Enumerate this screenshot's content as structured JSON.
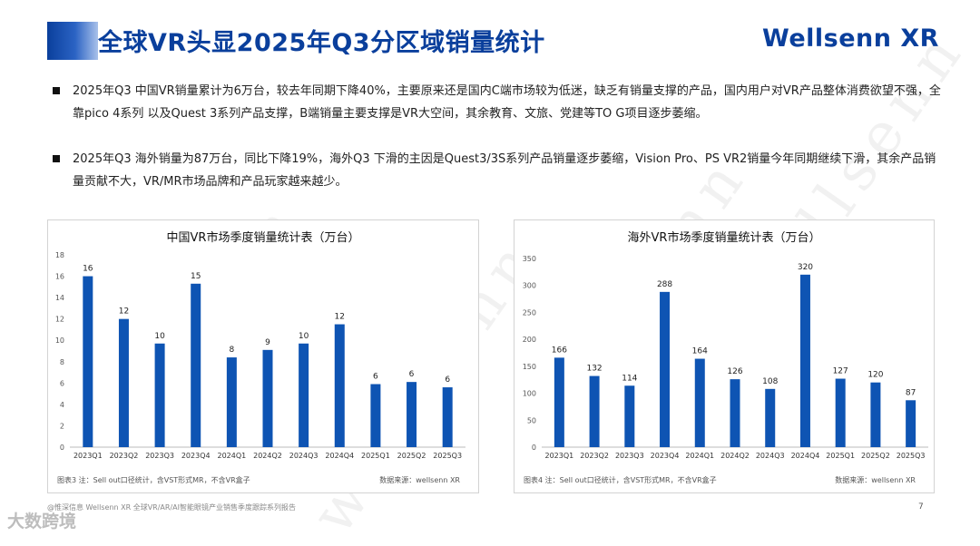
{
  "title": "全球VR头显2025年Q3分区域销量统计",
  "logo": "Wellsenn XR",
  "bullets": [
    "2025年Q3 中国VR销量累计为6万台，较去年同期下降40%，主要原来还是国内C端市场较为低迷，缺乏有销量支撑的产品，国内用户对VR产品整体消费欲望不强，全靠pico 4系列 以及Quest 3系列产品支撑，B端销量主要支撑是VR大空间，其余教育、文旅、党建等TO G项目逐步萎缩。",
    "2025年Q3 海外销量为87万台，同比下降19%，海外Q3 下滑的主因是Quest3/3S系列产品销量逐步萎缩，Vision Pro、PS VR2销量今年同期继续下滑，其余产品销量贡献不大，VR/MR市场品牌和产品玩家越来越少。"
  ],
  "charts": [
    {
      "note": "图表3  注：Sell out口径统计，含VST形式MR，不含VR盒子",
      "source": "数据来源：wellsenn XR"
    },
    {
      "note": "图表4  注：Sell out口径统计，含VST形式MR，不含VR盒子",
      "source": "数据来源：wellsenn XR"
    }
  ],
  "footer": "@惟深信息 Wellsenn XR 全球VR/AR/AI智能眼镜产业销售季度跟踪系列报告",
  "page_number": "7",
  "watermark": "wellsenn",
  "brand_watermark": "大数跨境",
  "colors": {
    "accent": "#0a3f9c",
    "bar": "#0e54b3"
  },
  "chart_data": [
    {
      "type": "bar",
      "title": "中国VR市场季度销量统计表（万台）",
      "categories": [
        "2023Q1",
        "2023Q2",
        "2023Q3",
        "2023Q4",
        "2024Q1",
        "2024Q2",
        "2024Q3",
        "2024Q4",
        "2025Q1",
        "2025Q2",
        "2025Q3"
      ],
      "values": [
        16,
        12,
        10,
        15,
        8,
        9,
        10,
        12,
        6,
        6,
        6
      ],
      "plotted_values": [
        16,
        12,
        9.7,
        15.3,
        8.4,
        9.1,
        9.7,
        11.5,
        5.9,
        6.1,
        5.6
      ],
      "ylim": [
        0,
        18
      ],
      "yticks": [
        0,
        2,
        4,
        6,
        8,
        10,
        12,
        14,
        16,
        18
      ],
      "grid": false,
      "legend": "none"
    },
    {
      "type": "bar",
      "title": "海外VR市场季度销量统计表（万台）",
      "categories": [
        "2023Q1",
        "2023Q2",
        "2023Q3",
        "2023Q4",
        "2024Q1",
        "2024Q2",
        "2024Q3",
        "2024Q4",
        "2025Q1",
        "2025Q2",
        "2025Q3"
      ],
      "values": [
        166,
        132,
        114,
        288,
        164,
        126,
        108,
        320,
        127,
        120,
        87
      ],
      "ylim": [
        0,
        350
      ],
      "yticks": [
        0,
        50,
        100,
        150,
        200,
        250,
        300,
        350
      ],
      "grid": false,
      "legend": "none"
    }
  ]
}
